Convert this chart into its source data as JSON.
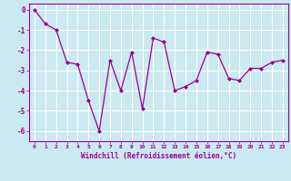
{
  "x": [
    0,
    1,
    2,
    3,
    4,
    5,
    6,
    7,
    8,
    9,
    10,
    11,
    12,
    13,
    14,
    15,
    16,
    17,
    18,
    19,
    20,
    21,
    22,
    23
  ],
  "y": [
    0.0,
    -0.7,
    -1.0,
    -2.6,
    -2.7,
    -4.5,
    -6.0,
    -2.5,
    -4.0,
    -2.1,
    -4.9,
    -1.4,
    -1.6,
    -4.0,
    -3.8,
    -3.5,
    -2.1,
    -2.2,
    -3.4,
    -3.5,
    -2.9,
    -2.9,
    -2.6,
    -2.5
  ],
  "line_color": "#990099",
  "marker": "D",
  "marker_size": 2,
  "bg_color": "#cbe9f0",
  "grid_color": "#ffffff",
  "xlabel": "Windchill (Refroidissement éolien,°C)",
  "xlabel_color": "#990099",
  "tick_color": "#990099",
  "spine_color": "#990099",
  "ylim": [
    -6.5,
    0.3
  ],
  "xlim": [
    -0.5,
    23.5
  ],
  "yticks": [
    0,
    -1,
    -2,
    -3,
    -4,
    -5,
    -6
  ],
  "xticks": [
    0,
    1,
    2,
    3,
    4,
    5,
    6,
    7,
    8,
    9,
    10,
    11,
    12,
    13,
    14,
    15,
    16,
    17,
    18,
    19,
    20,
    21,
    22,
    23
  ]
}
